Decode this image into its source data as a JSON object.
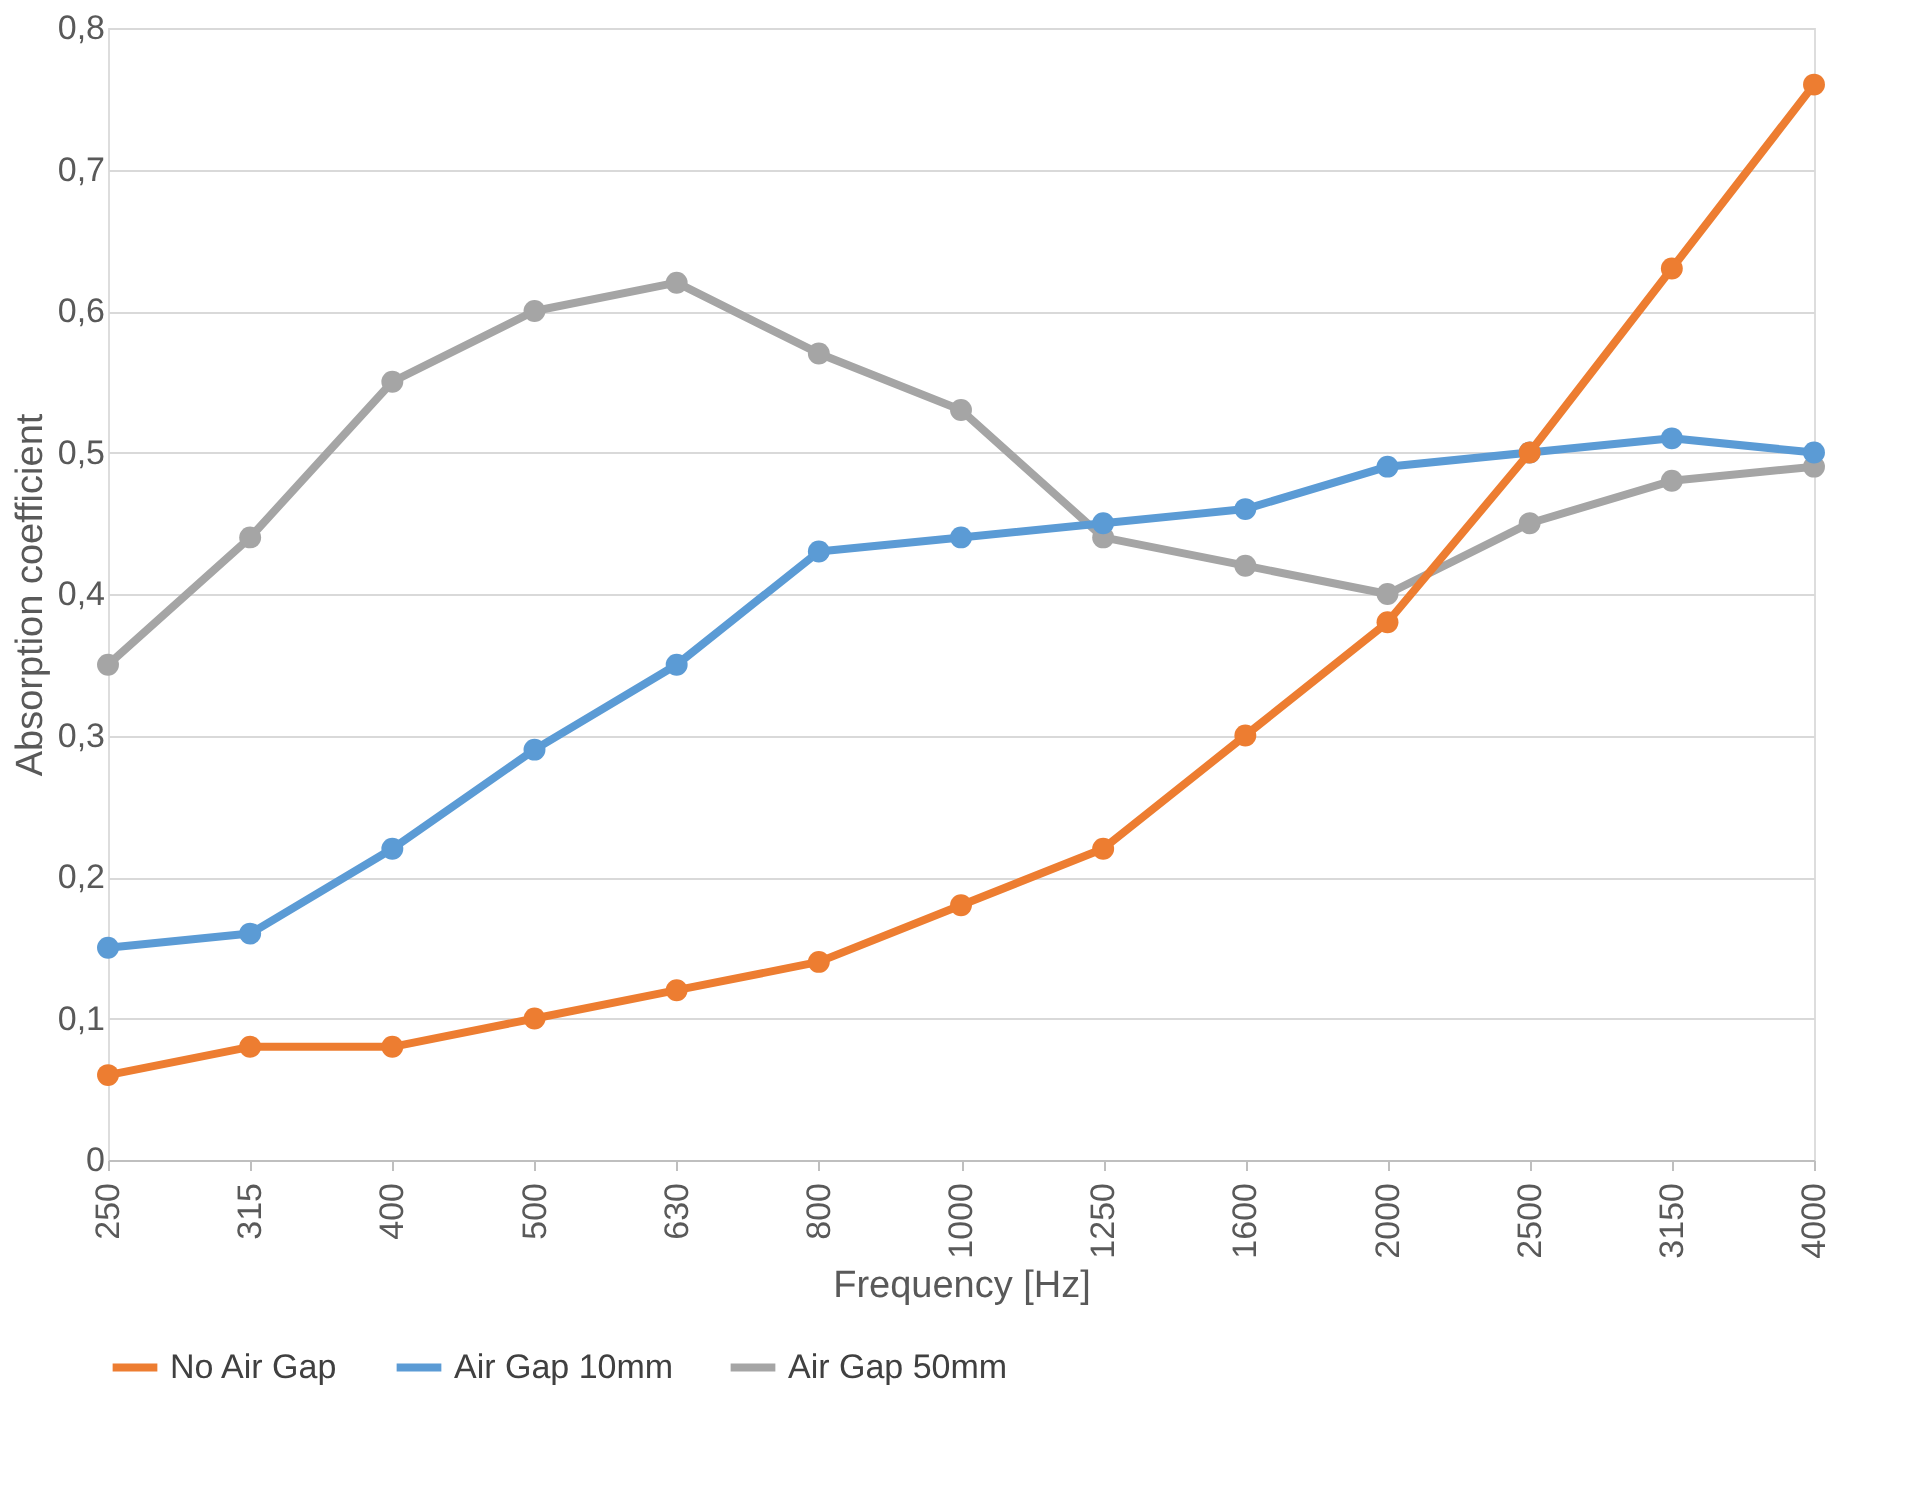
{
  "chart_data": {
    "type": "line",
    "xlabel": "Frequency [Hz]",
    "ylabel": "Absorption coefficient",
    "categories": [
      "250",
      "315",
      "400",
      "500",
      "630",
      "800",
      "1000",
      "1250",
      "1600",
      "2000",
      "2500",
      "3150",
      "4000"
    ],
    "series": [
      {
        "name": "No Air Gap",
        "color": "#ed7d31",
        "values": [
          0.06,
          0.08,
          0.08,
          0.1,
          0.12,
          0.14,
          0.18,
          0.22,
          0.3,
          0.38,
          0.5,
          0.63,
          0.76
        ]
      },
      {
        "name": "Air Gap 10mm",
        "color": "#5b9bd5",
        "values": [
          0.15,
          0.16,
          0.22,
          0.29,
          0.35,
          0.43,
          0.44,
          0.45,
          0.46,
          0.49,
          0.5,
          0.51,
          0.5
        ]
      },
      {
        "name": "Air Gap 50mm",
        "color": "#a5a5a5",
        "values": [
          0.35,
          0.44,
          0.55,
          0.6,
          0.62,
          0.57,
          0.53,
          0.44,
          0.42,
          0.4,
          0.45,
          0.48,
          0.49
        ]
      }
    ],
    "ylim": [
      0,
      0.8
    ],
    "yticks": [
      0,
      {
        "value": 0.1,
        "label": "0,1"
      },
      {
        "value": 0.2,
        "label": "0,2"
      },
      {
        "value": 0.3,
        "label": "0,3"
      },
      {
        "value": 0.4,
        "label": "0,4"
      },
      {
        "value": 0.5,
        "label": "0,5"
      },
      {
        "value": 0.6,
        "label": "0,6"
      },
      {
        "value": 0.7,
        "label": "0,7"
      },
      {
        "value": 0.8,
        "label": "0,8"
      }
    ],
    "grid": "y",
    "legend": "bottom",
    "marker": "circle",
    "line_style": "solid"
  }
}
